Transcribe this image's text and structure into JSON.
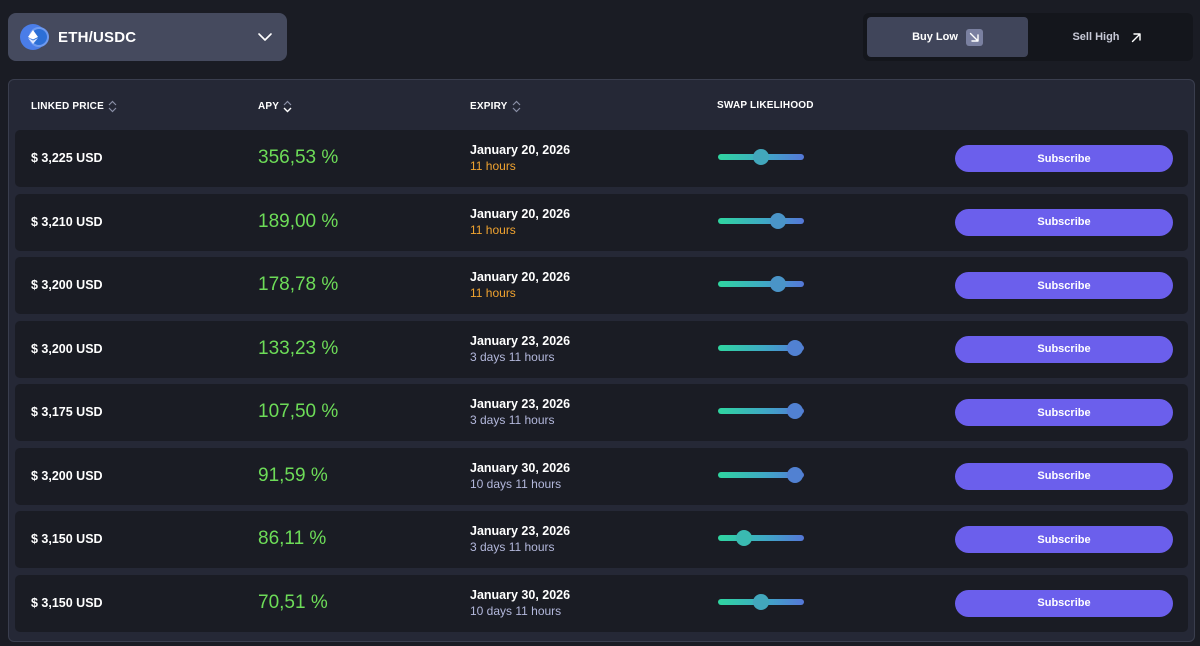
{
  "pair_selector": {
    "label": "ETH/USDC"
  },
  "mode_toggle": {
    "buy_low": "Buy Low",
    "sell_high": "Sell High",
    "active": "buy_low"
  },
  "table": {
    "headers": {
      "linked_price": "LINKED PRICE",
      "apy": "APY",
      "expiry": "EXPIRY",
      "swap_likelihood": "SWAP LIKELIHOOD"
    },
    "rows": [
      {
        "price": "$ 3,225 USD",
        "apy": "356,53 %",
        "expiry_date": "January 20, 2026",
        "expiry_rel": "11 hours",
        "rel_style": "soon",
        "likelihood": 0.5,
        "action": "Subscribe"
      },
      {
        "price": "$ 3,210 USD",
        "apy": "189,00 %",
        "expiry_date": "January 20, 2026",
        "expiry_rel": "11 hours",
        "rel_style": "soon",
        "likelihood": 0.7,
        "action": "Subscribe"
      },
      {
        "price": "$ 3,200 USD",
        "apy": "178,78 %",
        "expiry_date": "January 20, 2026",
        "expiry_rel": "11 hours",
        "rel_style": "soon",
        "likelihood": 0.7,
        "action": "Subscribe"
      },
      {
        "price": "$ 3,200 USD",
        "apy": "133,23 %",
        "expiry_date": "January 23, 2026",
        "expiry_rel": "3 days 11 hours",
        "rel_style": "later",
        "likelihood": 0.9,
        "action": "Subscribe"
      },
      {
        "price": "$ 3,175 USD",
        "apy": "107,50 %",
        "expiry_date": "January 23, 2026",
        "expiry_rel": "3 days 11 hours",
        "rel_style": "later",
        "likelihood": 0.9,
        "action": "Subscribe"
      },
      {
        "price": "$ 3,200 USD",
        "apy": "91,59 %",
        "expiry_date": "January 30, 2026",
        "expiry_rel": "10 days 11 hours",
        "rel_style": "later",
        "likelihood": 0.9,
        "action": "Subscribe"
      },
      {
        "price": "$ 3,150 USD",
        "apy": "86,11 %",
        "expiry_date": "January 23, 2026",
        "expiry_rel": "3 days 11 hours",
        "rel_style": "later",
        "likelihood": 0.3,
        "action": "Subscribe"
      },
      {
        "price": "$ 3,150 USD",
        "apy": "70,51 %",
        "expiry_date": "January 30, 2026",
        "expiry_rel": "10 days 11 hours",
        "rel_style": "later",
        "likelihood": 0.5,
        "action": "Subscribe"
      }
    ]
  },
  "colors": {
    "background": "#1a1c24",
    "panel": "#252836",
    "apy_green": "#6ddc58",
    "expiry_soon": "#f0a330",
    "expiry_later": "#b3b8dc",
    "subscribe": "#6b5fec",
    "slider_start": "#2fd6a0",
    "slider_end": "#5577d8"
  },
  "icons": {
    "pair": "eth-usdc-icon",
    "dropdown": "chevron-down-icon",
    "buy_low": "arrow-down-right-icon",
    "sell_high": "arrow-up-right-icon",
    "sort": "sort-icon"
  }
}
